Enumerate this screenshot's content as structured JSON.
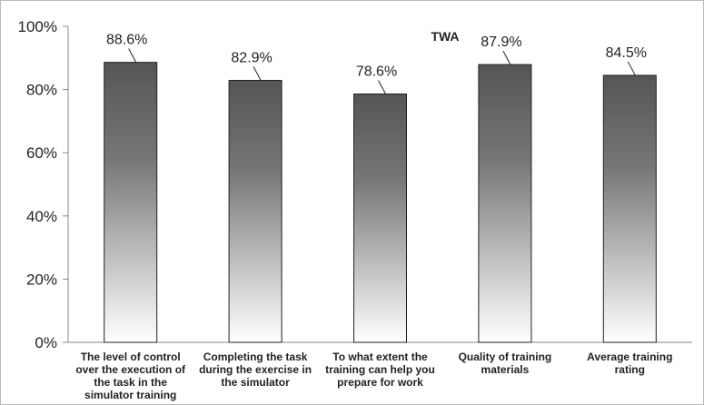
{
  "chart_data": {
    "type": "bar",
    "title": "TWA",
    "xlabel": "",
    "ylabel": "",
    "ylim": [
      0,
      100
    ],
    "y_ticks": [
      "0%",
      "20%",
      "40%",
      "60%",
      "80%",
      "100%"
    ],
    "grid": false,
    "categories": [
      "The level of control over the execution of the task in the simulator training",
      "Completing the task during the exercise in the simulator",
      "To what extent the training can help you prepare for work",
      "Quality of training materials",
      "Average training rating"
    ],
    "category_lines": [
      [
        "The level of control",
        "over the execution of",
        "the task in the",
        "simulator training"
      ],
      [
        "Completing the task",
        "during the exercise in",
        "the simulator"
      ],
      [
        "To what extent the",
        "training can help you",
        "prepare for work"
      ],
      [
        "Quality of training",
        "materials"
      ],
      [
        "Average training",
        "rating"
      ]
    ],
    "values": [
      88.6,
      82.9,
      78.6,
      87.9,
      84.5
    ],
    "data_labels": [
      "88.6%",
      "82.9%",
      "78.6%",
      "87.9%",
      "84.5%"
    ],
    "colors": {
      "bar_top": "#555555",
      "bar_bottom": "#ffffff",
      "bar_outline": "#222222",
      "axis": "#888888",
      "text": "#222222"
    }
  }
}
